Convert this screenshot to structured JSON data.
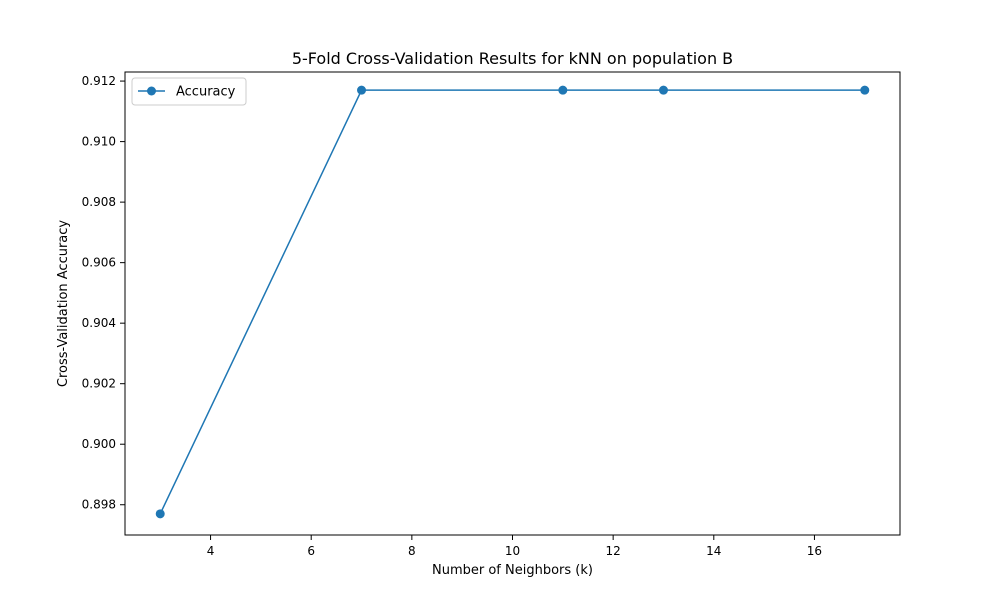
{
  "chart_data": {
    "type": "line",
    "title": "5-Fold Cross-Validation Results for kNN on population B",
    "xlabel": "Number of Neighbors (k)",
    "ylabel": "Cross-Validation Accuracy",
    "xlim": [
      2.3,
      17.7
    ],
    "ylim": [
      0.897,
      0.9123
    ],
    "xticks": [
      4,
      6,
      8,
      10,
      12,
      14,
      16
    ],
    "yticks": [
      0.898,
      0.9,
      0.902,
      0.904,
      0.906,
      0.908,
      0.91,
      0.912
    ],
    "xtick_labels": [
      "4",
      "6",
      "8",
      "10",
      "12",
      "14",
      "16"
    ],
    "ytick_labels": [
      "0.898",
      "0.900",
      "0.902",
      "0.904",
      "0.906",
      "0.908",
      "0.910",
      "0.912"
    ],
    "grid": false,
    "legend_position": "upper-left",
    "series": [
      {
        "name": "Accuracy",
        "color": "#1f77b4",
        "marker": "circle",
        "x": [
          3,
          7,
          11,
          13,
          17
        ],
        "y": [
          0.8977,
          0.9117,
          0.9117,
          0.9117,
          0.9117
        ]
      }
    ]
  }
}
